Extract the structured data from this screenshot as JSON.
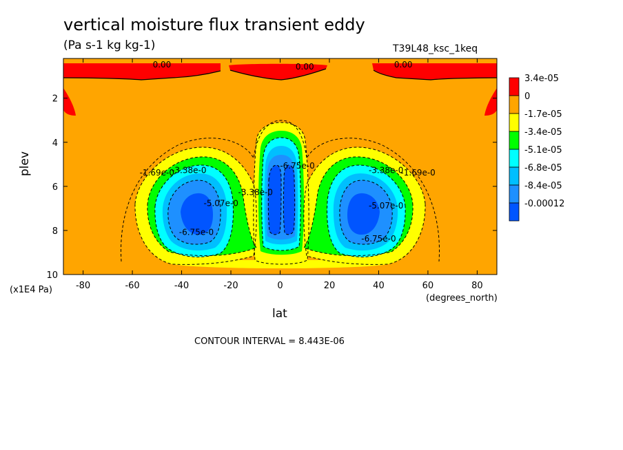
{
  "chart_data": {
    "type": "heatmap",
    "title": "vertical moisture flux transient eddy",
    "units": "(Pa s-1 kg kg-1)",
    "run_label": "T39L48_ksc_1keq",
    "xlabel": "lat",
    "x_unit_label": "(degrees_north)",
    "ylabel": "plev",
    "y_unit_label": "(x1E4 Pa)",
    "xlim": [
      -88,
      88
    ],
    "ylim": [
      10,
      0.2
    ],
    "x_ticks": [
      -80,
      -60,
      -40,
      -20,
      0,
      20,
      40,
      60,
      80
    ],
    "y_ticks": [
      2,
      4,
      6,
      8,
      10
    ],
    "contour_interval_text": "CONTOUR INTERVAL = 8.443E-06",
    "colorbar": {
      "labels": [
        "3.4e-05",
        "0",
        "-1.7e-05",
        "-3.4e-05",
        "-5.1e-05",
        "-6.8e-05",
        "-8.4e-05",
        "-0.00012"
      ],
      "colors": [
        "#ff0000",
        "#ffa500",
        "#ffff00",
        "#00ff00",
        "#00ffff",
        "#00bfff",
        "#1e90ff",
        "#0055ff"
      ]
    },
    "contour_labels": [
      {
        "text": "0.00",
        "lat": -48,
        "p": 0.6
      },
      {
        "text": "0.00",
        "lat": 10,
        "p": 0.7
      },
      {
        "text": "0.00",
        "lat": 50,
        "p": 0.6
      },
      {
        "text": "-1.69e-0",
        "lat": -50,
        "p": 5.5
      },
      {
        "text": "-3.38e-0",
        "lat": -37,
        "p": 5.4
      },
      {
        "text": "-5.07e-0",
        "lat": -24,
        "p": 6.9
      },
      {
        "text": "-6.75e-0",
        "lat": -34,
        "p": 8.2
      },
      {
        "text": "-3.38e-0",
        "lat": -10,
        "p": 6.4
      },
      {
        "text": "-6.75e-0",
        "lat": 7,
        "p": 5.2
      },
      {
        "text": "-3.38e-0",
        "lat": 43,
        "p": 5.4
      },
      {
        "text": "-5.07e-0",
        "lat": 43,
        "p": 7.0
      },
      {
        "text": "-1.69e-0",
        "lat": 56,
        "p": 5.5
      },
      {
        "text": "-6.75e-0",
        "lat": 40,
        "p": 8.5
      }
    ]
  }
}
